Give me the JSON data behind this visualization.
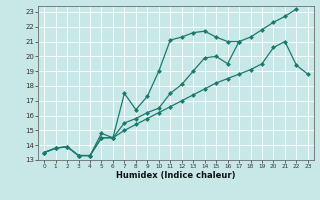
{
  "xlabel": "Humidex (Indice chaleur)",
  "bg_color": "#c8e8e8",
  "line_color": "#1a7a6e",
  "grid_color": "#ffffff",
  "xlim": [
    -0.5,
    23.5
  ],
  "ylim": [
    13,
    23.4
  ],
  "xticks": [
    0,
    1,
    2,
    3,
    4,
    5,
    6,
    7,
    8,
    9,
    10,
    11,
    12,
    13,
    14,
    15,
    16,
    17,
    18,
    19,
    20,
    21,
    22,
    23
  ],
  "yticks": [
    13,
    14,
    15,
    16,
    17,
    18,
    19,
    20,
    21,
    22,
    23
  ],
  "line1_x": [
    0,
    1,
    2,
    3,
    4,
    5,
    6,
    7,
    8,
    9,
    10,
    11,
    12,
    13,
    14,
    15,
    16,
    17,
    18,
    19,
    20,
    21,
    22
  ],
  "line1_y": [
    13.5,
    13.8,
    13.9,
    13.3,
    13.3,
    14.5,
    14.5,
    15.5,
    15.8,
    16.2,
    16.5,
    17.5,
    18.1,
    19.0,
    19.9,
    20.0,
    19.5,
    21.0,
    21.3,
    21.8,
    22.3,
    22.7,
    23.2
  ],
  "line2_x": [
    0,
    1,
    2,
    3,
    4,
    5,
    6,
    7,
    8,
    9,
    10,
    11,
    12,
    13,
    14,
    15,
    16,
    17
  ],
  "line2_y": [
    13.5,
    13.8,
    13.9,
    13.3,
    13.3,
    14.8,
    14.5,
    17.5,
    16.4,
    17.3,
    19.0,
    21.1,
    21.3,
    21.6,
    21.7,
    21.3,
    21.0,
    21.0
  ],
  "line3_x": [
    0,
    1,
    2,
    3,
    4,
    5,
    6,
    7,
    8,
    9,
    10,
    11,
    12,
    13,
    14,
    15,
    16,
    17,
    18,
    19,
    20,
    21,
    22,
    23
  ],
  "line3_y": [
    13.5,
    13.8,
    13.9,
    13.3,
    13.3,
    14.5,
    14.5,
    15.0,
    15.4,
    15.8,
    16.2,
    16.6,
    17.0,
    17.4,
    17.8,
    18.2,
    18.5,
    18.8,
    19.1,
    19.5,
    20.6,
    21.0,
    19.4,
    18.8
  ]
}
